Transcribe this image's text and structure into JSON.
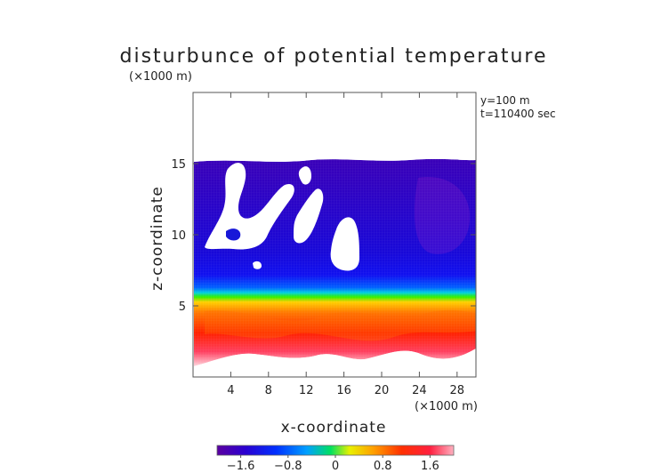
{
  "chart_data": {
    "type": "heatmap",
    "title": "disturbunce of potential temperature",
    "unit_note": "(×1000 m)",
    "annotations": [
      "y=100 m",
      "t=110400 sec"
    ],
    "xlabel": "x-coordinate",
    "xunit": "(×1000 m)",
    "ylabel": "z-coordinate",
    "xlim": [
      0,
      30
    ],
    "ylim": [
      0,
      20
    ],
    "x_ticks": [
      4,
      8,
      12,
      16,
      20,
      24,
      28
    ],
    "y_ticks": [
      5,
      10,
      15
    ],
    "colorbar": {
      "range": [
        -2,
        2
      ],
      "ticks": [
        -1.6,
        -0.8,
        0,
        0.8,
        1.6
      ],
      "tick_labels": [
        "−1.6",
        "−0.8",
        "0",
        "0.8",
        "1.6"
      ],
      "colors": [
        "#5a00a0",
        "#2a00d0",
        "#0030ff",
        "#00a0ff",
        "#00e060",
        "#e8f000",
        "#ffa000",
        "#ff3000",
        "#ff2040",
        "#ffb0c0"
      ]
    },
    "bands_z_vs_value": [
      {
        "z": 15.3,
        "value": -1.3
      },
      {
        "z": 12.0,
        "value": -1.4
      },
      {
        "z": 8.0,
        "value": -1.5
      },
      {
        "z": 7.0,
        "value": -1.2
      },
      {
        "z": 6.4,
        "value": -0.6
      },
      {
        "z": 6.1,
        "value": 0.1
      },
      {
        "z": 5.7,
        "value": 0.9
      },
      {
        "z": 5.0,
        "value": 1.3
      },
      {
        "z": 3.5,
        "value": 1.5
      },
      {
        "z": 2.0,
        "value": 1.6
      },
      {
        "z": 1.2,
        "value": 2.0
      }
    ],
    "top_boundary_z": 15.3,
    "bottom_boundary_z": 1.0
  }
}
